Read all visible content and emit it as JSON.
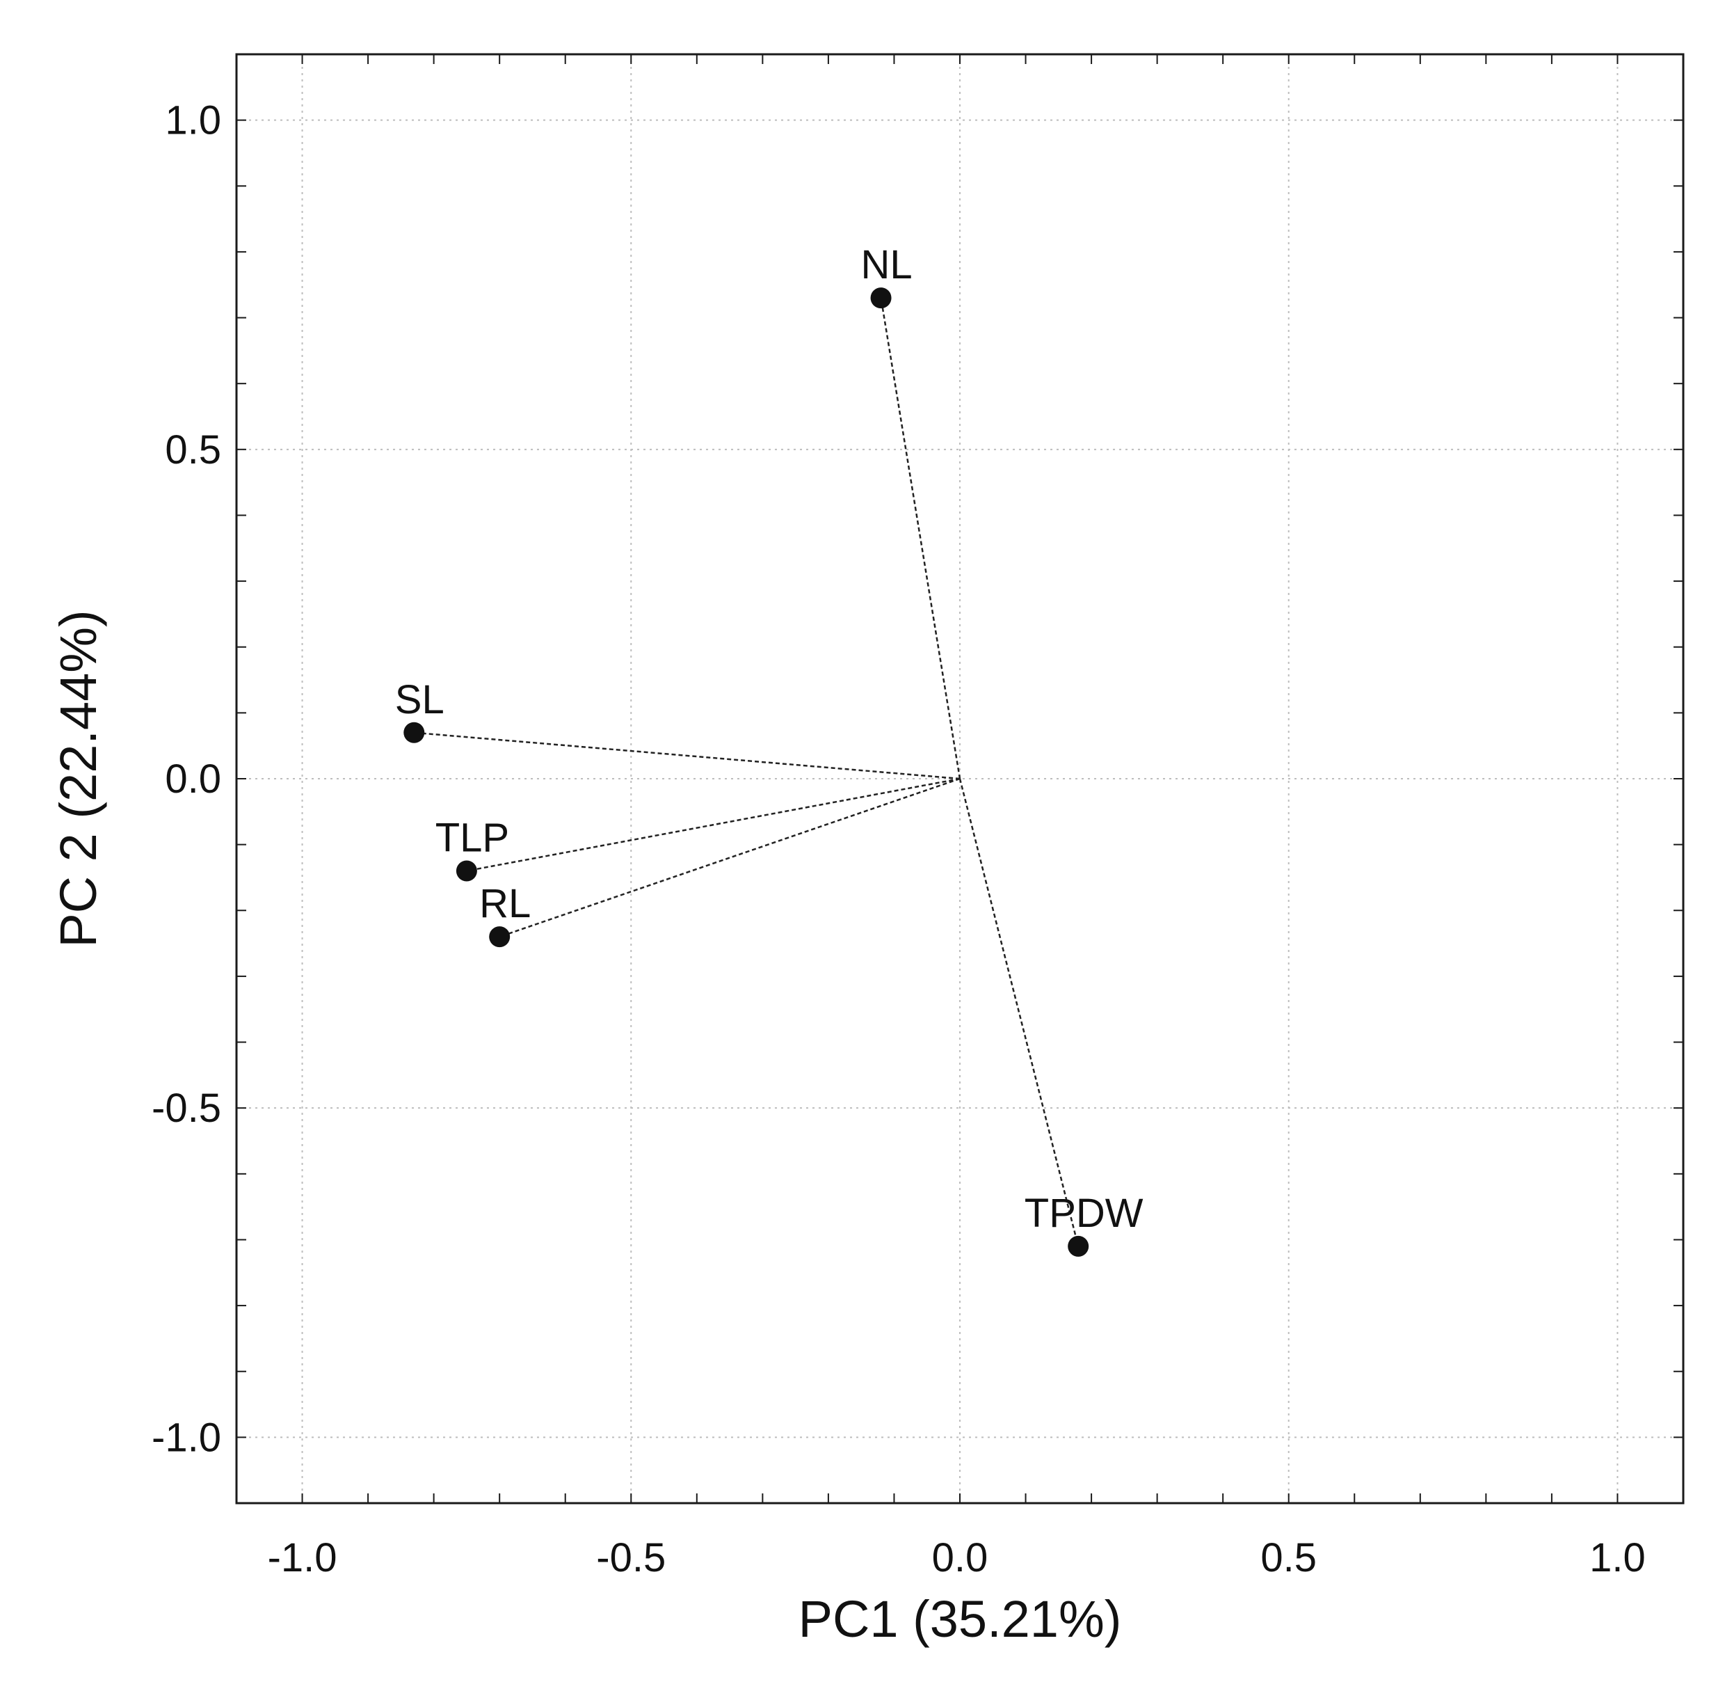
{
  "chart_data": {
    "type": "scatter",
    "subtype": "pca-loading-plot",
    "title": "",
    "xlabel": "PC1 (35.21%)",
    "ylabel": "PC 2 (22.44%)",
    "xlim": [
      -1.1,
      1.1
    ],
    "ylim": [
      -1.1,
      1.1
    ],
    "x_ticks": [
      -1.0,
      -0.5,
      0.0,
      0.5,
      1.0
    ],
    "y_ticks": [
      1.0,
      0.5,
      0.0,
      -0.5,
      -1.0
    ],
    "x_tick_labels": [
      "-1.0",
      "-0.5",
      "0.0",
      "0.5",
      "1.0"
    ],
    "y_tick_labels": [
      "1.0",
      "0.5",
      "0.0",
      "-0.5",
      "-1.0"
    ],
    "grid": true,
    "vectors_from_origin": true,
    "points": [
      {
        "label": "NL",
        "x": -0.12,
        "y": 0.73
      },
      {
        "label": "SL",
        "x": -0.83,
        "y": 0.07
      },
      {
        "label": "TLP",
        "x": -0.75,
        "y": -0.14
      },
      {
        "label": "RL",
        "x": -0.7,
        "y": -0.24
      },
      {
        "label": "TPDW",
        "x": 0.18,
        "y": -0.71
      }
    ]
  },
  "colors": {
    "background": "#ffffff",
    "frame": "#1a1a1a",
    "grid": "#bdbdbd",
    "point": "#111111",
    "vector": "#222222",
    "text": "#111111"
  }
}
